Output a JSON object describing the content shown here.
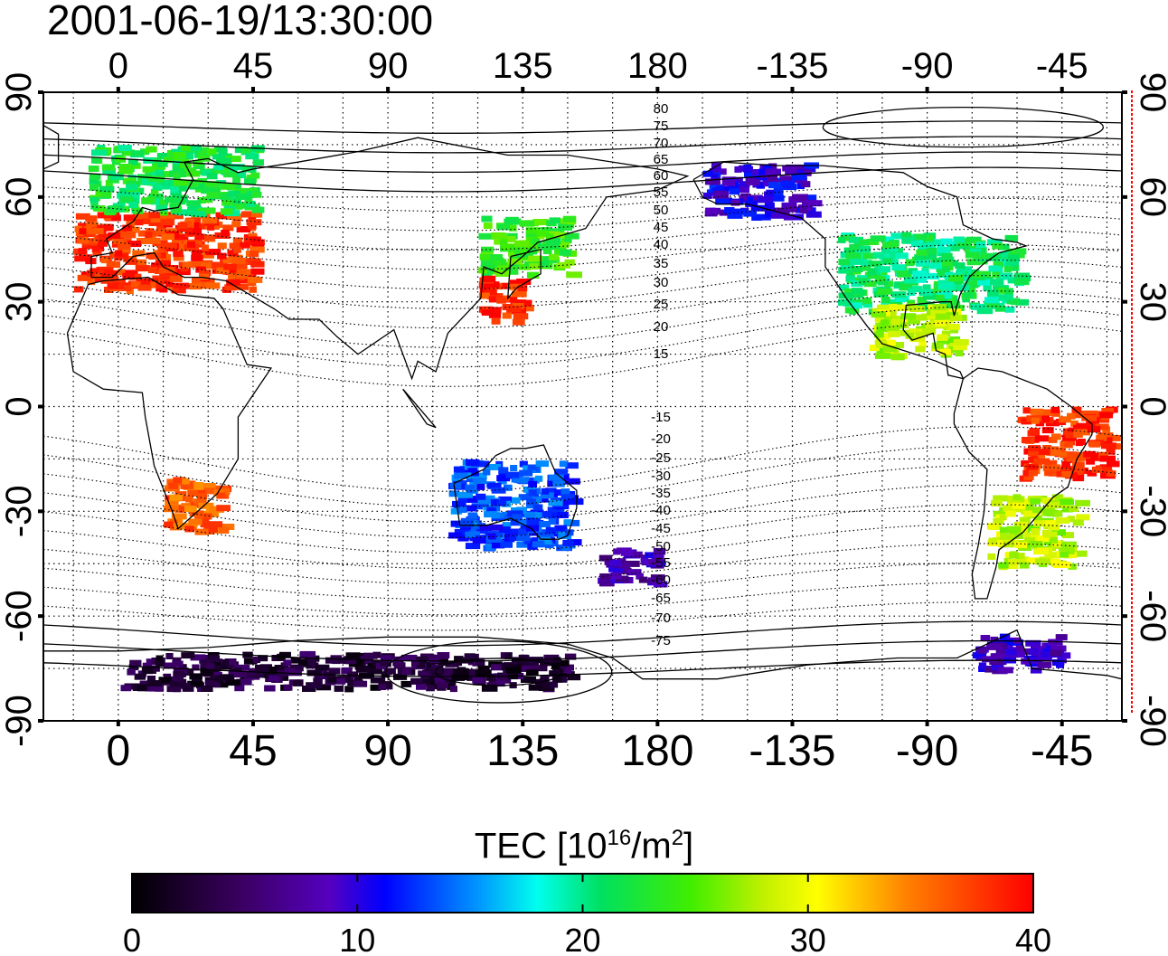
{
  "title": "2001-06-19/13:30:00",
  "map": {
    "projection": "cylindrical, longitude range -25 to 335",
    "top_lon_ticks": [
      "0",
      "45",
      "90",
      "135",
      "180",
      "-135",
      "-90",
      "-45"
    ],
    "bottom_lon_ticks": [
      "0",
      "45",
      "90",
      "135",
      "180",
      "-135",
      "-90",
      "-45"
    ],
    "left_lat_ticks": [
      "90",
      "60",
      "30",
      "0",
      "-30",
      "-60",
      "-90"
    ],
    "right_lat_ticks": [
      "90",
      "60",
      "30",
      "0",
      "-30",
      "-60",
      "-90"
    ],
    "magnetic_latitude_labels_north": [
      "80",
      "75",
      "70",
      "65",
      "60",
      "55",
      "50",
      "45",
      "40",
      "35",
      "30",
      "25",
      "20",
      "15"
    ],
    "magnetic_latitude_labels_south": [
      "-15",
      "-20",
      "-25",
      "-30",
      "-35",
      "-40",
      "-45",
      "-50",
      "-55",
      "-60",
      "-65",
      "-70",
      "-75"
    ],
    "grid": "dotted every 15 degrees"
  },
  "colorbar": {
    "label_text": "TEC  [10",
    "label_exp": "16",
    "label_unit": "/m",
    "label_unit_exp": "2",
    "label_close": "]",
    "min": 0,
    "max": 40,
    "ticks": [
      "0",
      "10",
      "20",
      "30",
      "40"
    ],
    "colormap": "black-purple-blue-cyan-green-yellow-orange-red"
  },
  "colors": {
    "tec_0": "#000000",
    "tec_10": "#0000ff",
    "tec_20": "#00e060",
    "tec_30": "#ffff00",
    "tec_40": "#ff0000",
    "magnetic_contour": "#000000",
    "right_axis_marker": "#ff0000"
  },
  "chart_data": {
    "type": "heatmap",
    "title": "2001-06-19/13:30:00",
    "xlabel": "",
    "ylabel": "",
    "x_range_deg": [
      -25,
      335
    ],
    "y_range_deg": [
      -90,
      90
    ],
    "value_range": [
      0,
      40
    ],
    "value_label": "TEC [10^16/m^2]",
    "regions": [
      {
        "lon": [
          -15,
          45
        ],
        "lat": [
          34,
          56
        ],
        "tec": 38
      },
      {
        "lon": [
          -10,
          45
        ],
        "lat": [
          56,
          75
        ],
        "tec": 22
      },
      {
        "lon": [
          15,
          35
        ],
        "lat": [
          -35,
          -20
        ],
        "tec": 36
      },
      {
        "lon": [
          120,
          150
        ],
        "lat": [
          38,
          55
        ],
        "tec": 24
      },
      {
        "lon": [
          120,
          135
        ],
        "lat": [
          25,
          38
        ],
        "tec": 38
      },
      {
        "lon": [
          240,
          300
        ],
        "lat": [
          28,
          50
        ],
        "tec": 21
      },
      {
        "lon": [
          195,
          230
        ],
        "lat": [
          55,
          70
        ],
        "tec": 10
      },
      {
        "lon": [
          250,
          280
        ],
        "lat": [
          15,
          30
        ],
        "tec": 28
      },
      {
        "lon": [
          300,
          330
        ],
        "lat": [
          -20,
          0
        ],
        "tec": 38
      },
      {
        "lon": [
          290,
          320
        ],
        "lat": [
          -45,
          -25
        ],
        "tec": 28
      },
      {
        "lon": [
          110,
          150
        ],
        "lat": [
          -40,
          -15
        ],
        "tec": 13
      },
      {
        "lon": [
          0,
          150
        ],
        "lat": [
          -80,
          -70
        ],
        "tec": 3
      },
      {
        "lon": [
          160,
          180
        ],
        "lat": [
          -50,
          -40
        ],
        "tec": 8
      },
      {
        "lon": [
          285,
          315
        ],
        "lat": [
          -75,
          -65
        ],
        "tec": 9
      }
    ]
  }
}
